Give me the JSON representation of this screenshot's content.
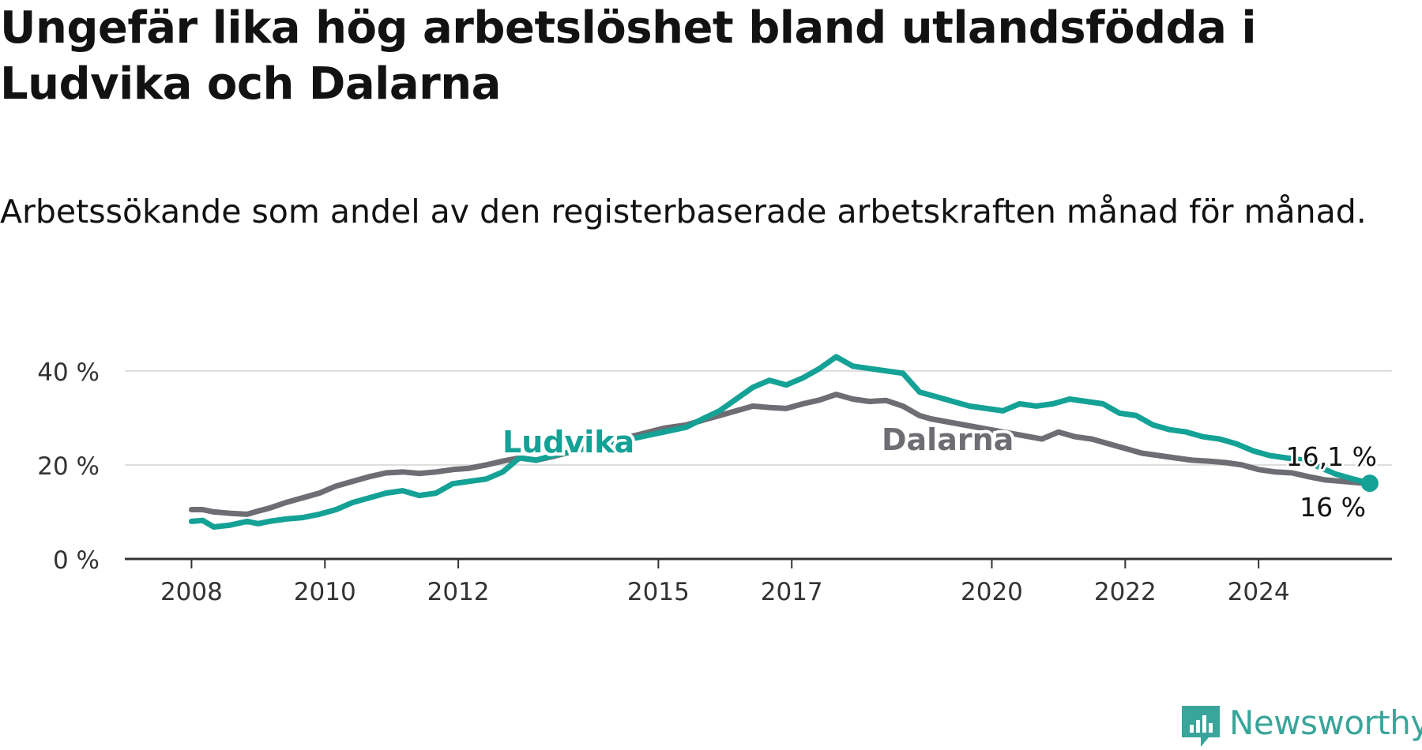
{
  "title": "Ungefär lika hög arbetslöshet bland utlandsfödda i Ludvika och Dalarna",
  "subtitle": "Arbetssökande som andel av den registerbaserade arbetskraften månad för månad.",
  "brand": {
    "name": "Newsworthy",
    "icon": "newsworthy-logo-icon",
    "color": "#3aa59a"
  },
  "chart_data": {
    "type": "line",
    "x_type": "date",
    "xlim": [
      "2007-01-01",
      "2025-12-01"
    ],
    "ylim": [
      0,
      45
    ],
    "yticks": [
      0,
      20,
      40
    ],
    "ytick_labels": [
      "0 %",
      "20 %",
      "40 %"
    ],
    "xticks": [
      "2008",
      "2010",
      "2012",
      "2015",
      "2017",
      "2020",
      "2022",
      "2024"
    ],
    "grid": true,
    "legend": "inline labels",
    "series": [
      {
        "name": "Dalarna",
        "color": "#6e6d73",
        "points": [
          [
            "2008-01",
            10.5
          ],
          [
            "2008-03",
            10.5
          ],
          [
            "2008-05",
            10.0
          ],
          [
            "2008-08",
            9.7
          ],
          [
            "2008-11",
            9.5
          ],
          [
            "2009-01",
            10.2
          ],
          [
            "2009-03",
            10.8
          ],
          [
            "2009-06",
            12.0
          ],
          [
            "2009-09",
            13.0
          ],
          [
            "2009-12",
            14.0
          ],
          [
            "2010-03",
            15.5
          ],
          [
            "2010-06",
            16.5
          ],
          [
            "2010-09",
            17.5
          ],
          [
            "2010-12",
            18.3
          ],
          [
            "2011-03",
            18.5
          ],
          [
            "2011-06",
            18.2
          ],
          [
            "2011-09",
            18.5
          ],
          [
            "2011-12",
            19.0
          ],
          [
            "2012-03",
            19.3
          ],
          [
            "2012-06",
            20.0
          ],
          [
            "2012-09",
            20.8
          ],
          [
            "2012-12",
            21.5
          ],
          [
            "2013-03",
            21.0
          ],
          [
            "2013-06",
            21.8
          ],
          [
            "2015-02",
            27.8
          ],
          [
            "2015-06",
            28.5
          ],
          [
            "2015-09",
            29.5
          ],
          [
            "2015-12",
            30.5
          ],
          [
            "2016-03",
            31.5
          ],
          [
            "2016-06",
            32.5
          ],
          [
            "2016-09",
            32.2
          ],
          [
            "2016-12",
            32.0
          ],
          [
            "2017-03",
            33.0
          ],
          [
            "2017-06",
            33.8
          ],
          [
            "2017-09",
            35.0
          ],
          [
            "2017-12",
            34.0
          ],
          [
            "2018-03",
            33.5
          ],
          [
            "2018-06",
            33.7
          ],
          [
            "2018-09",
            32.5
          ],
          [
            "2018-12",
            30.5
          ],
          [
            "2019-02",
            29.8
          ],
          [
            "2020-10",
            25.5
          ],
          [
            "2021-01",
            27.0
          ],
          [
            "2021-04",
            26.0
          ],
          [
            "2021-07",
            25.5
          ],
          [
            "2021-10",
            24.5
          ],
          [
            "2022-01",
            23.5
          ],
          [
            "2022-04",
            22.5
          ],
          [
            "2022-07",
            22.0
          ],
          [
            "2022-10",
            21.5
          ],
          [
            "2023-01",
            21.0
          ],
          [
            "2023-04",
            20.8
          ],
          [
            "2023-07",
            20.5
          ],
          [
            "2023-10",
            20.0
          ],
          [
            "2024-01",
            19.0
          ],
          [
            "2024-04",
            18.5
          ],
          [
            "2024-07",
            18.3
          ],
          [
            "2024-10",
            17.5
          ],
          [
            "2025-01",
            16.8
          ],
          [
            "2025-04",
            16.5
          ],
          [
            "2025-07",
            16.2
          ],
          [
            "2025-09",
            16.0
          ]
        ],
        "label": "Dalarna",
        "end_label": "16 %"
      },
      {
        "name": "Ludvika",
        "color": "#14a196",
        "points": [
          [
            "2008-01",
            8.0
          ],
          [
            "2008-03",
            8.2
          ],
          [
            "2008-05",
            6.8
          ],
          [
            "2008-08",
            7.2
          ],
          [
            "2008-11",
            8.0
          ],
          [
            "2009-01",
            7.5
          ],
          [
            "2009-03",
            8.0
          ],
          [
            "2009-06",
            8.5
          ],
          [
            "2009-09",
            8.8
          ],
          [
            "2009-12",
            9.5
          ],
          [
            "2010-03",
            10.5
          ],
          [
            "2010-06",
            12.0
          ],
          [
            "2010-09",
            13.0
          ],
          [
            "2010-12",
            14.0
          ],
          [
            "2011-03",
            14.5
          ],
          [
            "2011-06",
            13.5
          ],
          [
            "2011-09",
            14.0
          ],
          [
            "2011-12",
            16.0
          ],
          [
            "2012-03",
            16.5
          ],
          [
            "2012-06",
            17.0
          ],
          [
            "2012-09",
            18.5
          ],
          [
            "2012-12",
            21.5
          ],
          [
            "2013-03",
            21.0
          ],
          [
            "2013-06",
            22.0
          ],
          [
            "2015-02",
            27.0
          ],
          [
            "2015-06",
            28.0
          ],
          [
            "2015-09",
            29.8
          ],
          [
            "2015-12",
            31.5
          ],
          [
            "2016-03",
            34.0
          ],
          [
            "2016-06",
            36.5
          ],
          [
            "2016-09",
            38.0
          ],
          [
            "2016-12",
            37.0
          ],
          [
            "2017-03",
            38.5
          ],
          [
            "2017-06",
            40.5
          ],
          [
            "2017-09",
            43.0
          ],
          [
            "2017-12",
            41.0
          ],
          [
            "2018-03",
            40.5
          ],
          [
            "2018-06",
            40.0
          ],
          [
            "2018-09",
            39.5
          ],
          [
            "2018-12",
            35.5
          ],
          [
            "2019-03",
            34.5
          ],
          [
            "2019-06",
            33.5
          ],
          [
            "2019-09",
            32.5
          ],
          [
            "2019-12",
            32.0
          ],
          [
            "2020-03",
            31.5
          ],
          [
            "2020-06",
            33.0
          ],
          [
            "2020-09",
            32.5
          ],
          [
            "2020-12",
            33.0
          ],
          [
            "2021-03",
            34.0
          ],
          [
            "2021-06",
            33.5
          ],
          [
            "2021-09",
            33.0
          ],
          [
            "2021-12",
            31.0
          ],
          [
            "2022-03",
            30.5
          ],
          [
            "2022-06",
            28.5
          ],
          [
            "2022-09",
            27.5
          ],
          [
            "2022-12",
            27.0
          ],
          [
            "2023-03",
            26.0
          ],
          [
            "2023-06",
            25.5
          ],
          [
            "2023-09",
            24.5
          ],
          [
            "2023-12",
            23.0
          ],
          [
            "2024-03",
            22.0
          ],
          [
            "2024-06",
            21.5
          ],
          [
            "2024-09",
            21.0
          ],
          [
            "2024-12",
            19.5
          ],
          [
            "2025-03",
            18.0
          ],
          [
            "2025-06",
            17.0
          ],
          [
            "2025-09",
            16.1
          ]
        ],
        "label": "Ludvika",
        "end_label": "16,1 %"
      }
    ]
  }
}
